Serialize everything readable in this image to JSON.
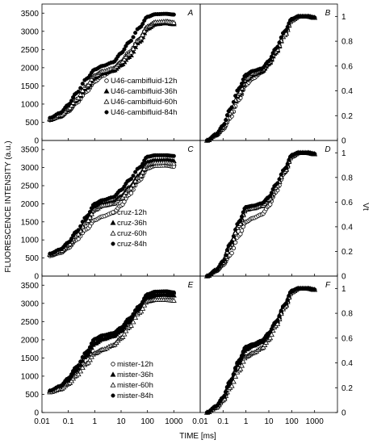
{
  "figure": {
    "ylabel_left": "FLUORESCENCE INTENSITY (a.u.)",
    "ylabel_right": "Vt",
    "xlabel": "TIME [ms]"
  },
  "chart_data": [
    {
      "panel": "A",
      "type": "scatter",
      "xscale": "log",
      "xlim": [
        0.01,
        10000
      ],
      "ylim": [
        0,
        3750
      ],
      "yticks": [
        0,
        500,
        1000,
        1500,
        2000,
        2500,
        3000,
        3500
      ],
      "xticks": [
        "0.01",
        "0.1",
        "1",
        "10",
        "100",
        "1000"
      ],
      "series": [
        {
          "name": "U46-cambifluid-12h",
          "marker": "open-circle",
          "x": [
            0.02,
            0.05,
            0.1,
            0.2,
            0.5,
            1,
            2,
            5,
            10,
            20,
            50,
            100,
            200,
            500,
            1000
          ],
          "y": [
            560,
            650,
            800,
            1030,
            1350,
            1620,
            1780,
            1930,
            2150,
            2420,
            2780,
            3110,
            3230,
            3250,
            3220
          ]
        },
        {
          "name": "U46-cambifluid-36h",
          "marker": "filled-triangle",
          "x": [
            0.02,
            0.05,
            0.1,
            0.2,
            0.5,
            1,
            2,
            5,
            10,
            20,
            50,
            100,
            200,
            500,
            1000
          ],
          "y": [
            580,
            680,
            850,
            1100,
            1450,
            1730,
            1850,
            1920,
            2080,
            2300,
            2720,
            3080,
            3200,
            3230,
            3200
          ]
        },
        {
          "name": "U46-cambifluid-60h",
          "marker": "open-triangle",
          "x": [
            0.02,
            0.05,
            0.1,
            0.2,
            0.5,
            1,
            2,
            5,
            10,
            20,
            50,
            100,
            200,
            500,
            1000
          ],
          "y": [
            590,
            690,
            870,
            1130,
            1500,
            1780,
            1900,
            1980,
            2150,
            2380,
            2780,
            3130,
            3250,
            3270,
            3240
          ]
        },
        {
          "name": "U46-cambifluid-84h",
          "marker": "filled-circle",
          "x": [
            0.02,
            0.05,
            0.1,
            0.2,
            0.5,
            1,
            2,
            5,
            10,
            20,
            50,
            100,
            200,
            500,
            1000
          ],
          "y": [
            620,
            760,
            980,
            1300,
            1700,
            1950,
            2050,
            2150,
            2400,
            2700,
            3100,
            3400,
            3470,
            3480,
            3460
          ]
        }
      ]
    },
    {
      "panel": "B",
      "type": "scatter",
      "xscale": "log",
      "xlim": [
        0.01,
        10000
      ],
      "ylim": [
        0,
        1.1
      ],
      "yticks": [
        0,
        0.2,
        0.4,
        0.6,
        0.8,
        1
      ],
      "series": [
        {
          "name": "U46-cambifluid-12h",
          "marker": "open-circle",
          "x": [
            0.02,
            0.05,
            0.1,
            0.2,
            0.5,
            1,
            2,
            5,
            10,
            20,
            50,
            100,
            200,
            500,
            1000
          ],
          "y": [
            0,
            0.04,
            0.09,
            0.18,
            0.33,
            0.45,
            0.5,
            0.55,
            0.62,
            0.72,
            0.85,
            0.97,
            1,
            1,
            0.99
          ]
        },
        {
          "name": "U46-cambifluid-36h",
          "marker": "filled-triangle",
          "x": [
            0.02,
            0.05,
            0.1,
            0.2,
            0.5,
            1,
            2,
            5,
            10,
            20,
            50,
            100,
            200,
            500,
            1000
          ],
          "y": [
            0,
            0.05,
            0.11,
            0.22,
            0.37,
            0.49,
            0.53,
            0.56,
            0.62,
            0.71,
            0.85,
            0.97,
            1,
            1,
            0.99
          ]
        },
        {
          "name": "U46-cambifluid-60h",
          "marker": "open-triangle",
          "x": [
            0.02,
            0.05,
            0.1,
            0.2,
            0.5,
            1,
            2,
            5,
            10,
            20,
            50,
            100,
            200,
            500,
            1000
          ],
          "y": [
            0,
            0.05,
            0.11,
            0.22,
            0.38,
            0.5,
            0.54,
            0.57,
            0.63,
            0.72,
            0.85,
            0.97,
            1,
            1,
            0.99
          ]
        },
        {
          "name": "U46-cambifluid-84h",
          "marker": "filled-circle",
          "x": [
            0.02,
            0.05,
            0.1,
            0.2,
            0.5,
            1,
            2,
            5,
            10,
            20,
            50,
            100,
            200,
            500,
            1000
          ],
          "y": [
            0,
            0.05,
            0.12,
            0.25,
            0.42,
            0.53,
            0.56,
            0.58,
            0.64,
            0.74,
            0.88,
            0.98,
            1,
            1,
            0.99
          ]
        }
      ]
    },
    {
      "panel": "C",
      "type": "scatter",
      "xscale": "log",
      "xlim": [
        0.01,
        10000
      ],
      "ylim": [
        0,
        3750
      ],
      "yticks": [
        0,
        500,
        1000,
        1500,
        2000,
        2500,
        3000,
        3500
      ],
      "xticks": [
        "0.01",
        "0.1",
        "1",
        "10",
        "100",
        "1000"
      ],
      "series": [
        {
          "name": "cruz-12h",
          "marker": "open-circle",
          "x": [
            0.02,
            0.05,
            0.1,
            0.2,
            0.5,
            1,
            2,
            5,
            10,
            20,
            50,
            100,
            200,
            500,
            1000
          ],
          "y": [
            560,
            640,
            780,
            1000,
            1300,
            1550,
            1650,
            1750,
            1950,
            2250,
            2650,
            2980,
            3050,
            3060,
            3030
          ]
        },
        {
          "name": "cruz-36h",
          "marker": "filled-triangle",
          "x": [
            0.02,
            0.05,
            0.1,
            0.2,
            0.5,
            1,
            2,
            5,
            10,
            20,
            50,
            100,
            200,
            500,
            1000
          ],
          "y": [
            600,
            700,
            870,
            1150,
            1550,
            1900,
            2000,
            2050,
            2200,
            2450,
            2800,
            3150,
            3200,
            3210,
            3180
          ]
        },
        {
          "name": "cruz-60h",
          "marker": "open-triangle",
          "x": [
            0.02,
            0.05,
            0.1,
            0.2,
            0.5,
            1,
            2,
            5,
            10,
            20,
            50,
            100,
            200,
            500,
            1000
          ],
          "y": [
            600,
            690,
            860,
            1120,
            1500,
            1840,
            1950,
            2000,
            2150,
            2400,
            2750,
            3080,
            3130,
            3140,
            3110
          ]
        },
        {
          "name": "cruz-84h",
          "marker": "filled-circle",
          "x": [
            0.02,
            0.05,
            0.1,
            0.2,
            0.5,
            1,
            2,
            5,
            10,
            20,
            50,
            100,
            200,
            500,
            1000
          ],
          "y": [
            620,
            740,
            930,
            1230,
            1650,
            2000,
            2100,
            2180,
            2380,
            2650,
            3000,
            3300,
            3340,
            3340,
            3320
          ]
        }
      ]
    },
    {
      "panel": "D",
      "type": "scatter",
      "xscale": "log",
      "xlim": [
        0.01,
        10000
      ],
      "ylim": [
        0,
        1.1
      ],
      "yticks": [
        0,
        0.2,
        0.4,
        0.6,
        0.8,
        1
      ],
      "series": [
        {
          "name": "cruz-12h",
          "marker": "open-circle",
          "x": [
            0.02,
            0.05,
            0.1,
            0.2,
            0.5,
            1,
            2,
            5,
            10,
            20,
            50,
            100,
            200,
            500,
            1000
          ],
          "y": [
            0,
            0.04,
            0.09,
            0.17,
            0.33,
            0.44,
            0.47,
            0.5,
            0.57,
            0.68,
            0.84,
            0.97,
            1,
            1,
            0.99
          ]
        },
        {
          "name": "cruz-36h",
          "marker": "filled-triangle",
          "x": [
            0.02,
            0.05,
            0.1,
            0.2,
            0.5,
            1,
            2,
            5,
            10,
            20,
            50,
            100,
            200,
            500,
            1000
          ],
          "y": [
            0,
            0.05,
            0.12,
            0.25,
            0.42,
            0.55,
            0.56,
            0.58,
            0.63,
            0.72,
            0.86,
            0.98,
            1,
            1,
            0.99
          ]
        },
        {
          "name": "cruz-60h",
          "marker": "open-triangle",
          "x": [
            0.02,
            0.05,
            0.1,
            0.2,
            0.5,
            1,
            2,
            5,
            10,
            20,
            50,
            100,
            200,
            500,
            1000
          ],
          "y": [
            0,
            0.05,
            0.11,
            0.24,
            0.41,
            0.54,
            0.55,
            0.57,
            0.62,
            0.72,
            0.85,
            0.97,
            1,
            1,
            0.99
          ]
        },
        {
          "name": "cruz-84h",
          "marker": "filled-circle",
          "x": [
            0.02,
            0.05,
            0.1,
            0.2,
            0.5,
            1,
            2,
            5,
            10,
            20,
            50,
            100,
            200,
            500,
            1000
          ],
          "y": [
            0,
            0.05,
            0.12,
            0.26,
            0.44,
            0.56,
            0.57,
            0.59,
            0.64,
            0.74,
            0.87,
            0.98,
            1,
            1,
            0.99
          ]
        }
      ]
    },
    {
      "panel": "E",
      "type": "scatter",
      "xscale": "log",
      "xlim": [
        0.01,
        10000
      ],
      "ylim": [
        0,
        3750
      ],
      "yticks": [
        0,
        500,
        1000,
        1500,
        2000,
        2500,
        3000,
        3500
      ],
      "xticks": [
        "0.01",
        "0.1",
        "1",
        "10",
        "100",
        "1000"
      ],
      "series": [
        {
          "name": "mister-12h",
          "marker": "open-circle",
          "x": [
            0.02,
            0.05,
            0.1,
            0.2,
            0.5,
            1,
            2,
            5,
            10,
            20,
            50,
            100,
            200,
            500,
            1000
          ],
          "y": [
            580,
            700,
            900,
            1200,
            1600,
            1950,
            2080,
            2150,
            2300,
            2550,
            2900,
            3220,
            3280,
            3290,
            3270
          ]
        },
        {
          "name": "mister-36h",
          "marker": "filled-triangle",
          "x": [
            0.02,
            0.05,
            0.1,
            0.2,
            0.5,
            1,
            2,
            5,
            10,
            20,
            50,
            100,
            200,
            500,
            1000
          ],
          "y": [
            590,
            690,
            880,
            1170,
            1560,
            1900,
            2020,
            2100,
            2250,
            2500,
            2850,
            3170,
            3230,
            3240,
            3220
          ]
        },
        {
          "name": "mister-60h",
          "marker": "open-triangle",
          "x": [
            0.02,
            0.05,
            0.1,
            0.2,
            0.5,
            1,
            2,
            5,
            10,
            20,
            50,
            100,
            200,
            500,
            1000
          ],
          "y": [
            560,
            640,
            790,
            1020,
            1350,
            1630,
            1730,
            1850,
            2050,
            2350,
            2750,
            3060,
            3100,
            3100,
            3080
          ]
        },
        {
          "name": "mister-84h",
          "marker": "filled-circle",
          "x": [
            0.02,
            0.05,
            0.1,
            0.2,
            0.5,
            1,
            2,
            5,
            10,
            20,
            50,
            100,
            200,
            500,
            1000
          ],
          "y": [
            600,
            730,
            940,
            1250,
            1670,
            2020,
            2120,
            2180,
            2330,
            2580,
            2930,
            3250,
            3320,
            3330,
            3300
          ]
        }
      ]
    },
    {
      "panel": "F",
      "type": "scatter",
      "xscale": "log",
      "xlim": [
        0.01,
        10000
      ],
      "ylim": [
        0,
        1.1
      ],
      "yticks": [
        0,
        0.2,
        0.4,
        0.6,
        0.8,
        1
      ],
      "series": [
        {
          "name": "mister-12h",
          "marker": "open-circle",
          "x": [
            0.02,
            0.05,
            0.1,
            0.2,
            0.5,
            1,
            2,
            5,
            10,
            20,
            50,
            100,
            200,
            500,
            1000
          ],
          "y": [
            0,
            0.05,
            0.12,
            0.25,
            0.41,
            0.52,
            0.54,
            0.57,
            0.63,
            0.72,
            0.86,
            0.98,
            1,
            1,
            0.99
          ]
        },
        {
          "name": "mister-36h",
          "marker": "filled-triangle",
          "x": [
            0.02,
            0.05,
            0.1,
            0.2,
            0.5,
            1,
            2,
            5,
            10,
            20,
            50,
            100,
            200,
            500,
            1000
          ],
          "y": [
            0,
            0.05,
            0.11,
            0.24,
            0.4,
            0.51,
            0.54,
            0.57,
            0.63,
            0.72,
            0.86,
            0.98,
            1,
            1,
            0.99
          ]
        },
        {
          "name": "mister-60h",
          "marker": "open-triangle",
          "x": [
            0.02,
            0.05,
            0.1,
            0.2,
            0.5,
            1,
            2,
            5,
            10,
            20,
            50,
            100,
            200,
            500,
            1000
          ],
          "y": [
            0,
            0.04,
            0.1,
            0.2,
            0.34,
            0.45,
            0.48,
            0.52,
            0.59,
            0.7,
            0.85,
            0.97,
            1,
            1,
            0.99
          ]
        },
        {
          "name": "mister-84h",
          "marker": "filled-circle",
          "x": [
            0.02,
            0.05,
            0.1,
            0.2,
            0.5,
            1,
            2,
            5,
            10,
            20,
            50,
            100,
            200,
            500,
            1000
          ],
          "y": [
            0,
            0.05,
            0.12,
            0.25,
            0.42,
            0.53,
            0.55,
            0.58,
            0.64,
            0.73,
            0.87,
            0.98,
            1,
            1,
            0.99
          ]
        }
      ]
    }
  ]
}
